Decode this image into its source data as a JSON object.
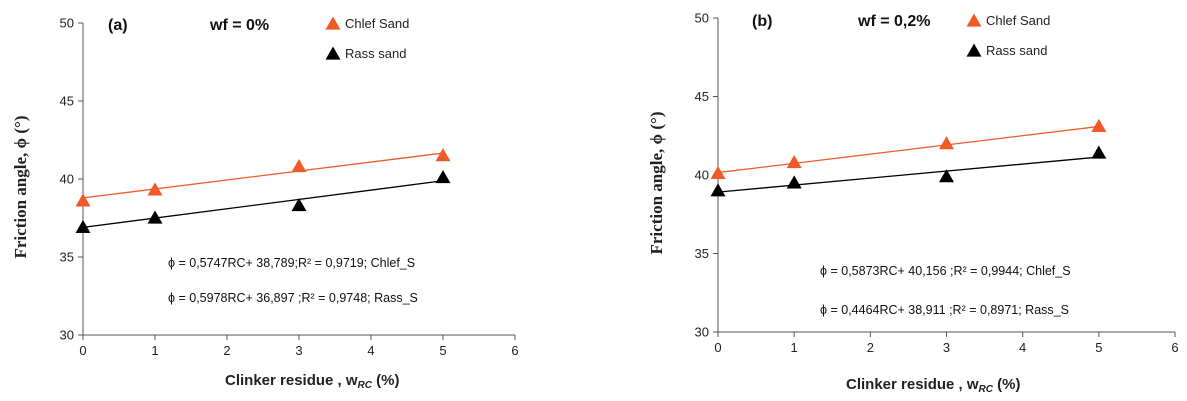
{
  "chart_data": [
    {
      "type": "scatter",
      "panel_label": "(a)",
      "condition": "wf = 0%",
      "xlabel": "Clinker residue , w",
      "xlabel_sub": "RC",
      "xlabel_unit": " (%)",
      "ylabel": "Friction angle,  ϕ (°)",
      "xlim": [
        0,
        6
      ],
      "ylim": [
        30,
        50
      ],
      "xticks": [
        "0",
        "1",
        "2",
        "3",
        "4",
        "5",
        "6"
      ],
      "yticks": [
        "30",
        "35",
        "40",
        "45",
        "50"
      ],
      "grid": false,
      "legend_position": "top-right",
      "series": [
        {
          "name": "Chlef Sand",
          "color": "#f05a28",
          "marker": "triangle",
          "x": [
            0,
            1,
            3,
            5
          ],
          "y": [
            38.6,
            39.3,
            40.8,
            41.5
          ],
          "trend": {
            "slope": 0.5747,
            "intercept": 38.789
          }
        },
        {
          "name": "Rass sand",
          "color": "#000000",
          "marker": "triangle",
          "x": [
            0,
            1,
            3,
            5
          ],
          "y": [
            36.9,
            37.5,
            38.3,
            40.1
          ],
          "trend": {
            "slope": 0.5978,
            "intercept": 36.897
          }
        }
      ],
      "equations": [
        "ϕ = 0,5747RC+ 38,789;R² = 0,9719; Chlef_S",
        "ϕ = 0,5978RC+ 36,897 ;R² = 0,9748; Rass_S"
      ]
    },
    {
      "type": "scatter",
      "panel_label": "(b)",
      "condition": "wf = 0,2%",
      "xlabel": "Clinker residue , w",
      "xlabel_sub": "RC",
      "xlabel_unit": " (%)",
      "ylabel": "Friction angle,  ϕ (°)",
      "xlim": [
        0,
        6
      ],
      "ylim": [
        30,
        50
      ],
      "xticks": [
        "0",
        "1",
        "2",
        "3",
        "4",
        "5",
        "6"
      ],
      "yticks": [
        "30",
        "35",
        "40",
        "45",
        "50"
      ],
      "grid": false,
      "legend_position": "top-right",
      "series": [
        {
          "name": "Chlef Sand",
          "color": "#f05a28",
          "marker": "triangle",
          "x": [
            0,
            1,
            3,
            5
          ],
          "y": [
            40.1,
            40.8,
            42.0,
            43.1
          ],
          "trend": {
            "slope": 0.5873,
            "intercept": 40.156
          }
        },
        {
          "name": "Rass sand",
          "color": "#000000",
          "marker": "triangle",
          "x": [
            0,
            1,
            3,
            5
          ],
          "y": [
            39.0,
            39.5,
            39.9,
            41.4
          ],
          "trend": {
            "slope": 0.4464,
            "intercept": 38.911
          }
        }
      ],
      "equations": [
        "ϕ = 0,5873RC+ 40,156 ;R² = 0,9944; Chlef_S",
        "ϕ = 0,4464RC+ 38,911 ;R² = 0,8971; Rass_S"
      ]
    }
  ]
}
